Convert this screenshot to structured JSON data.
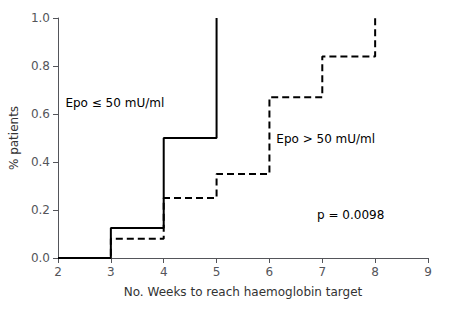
{
  "chart_data": {
    "type": "line",
    "xlabel": "No. Weeks to reach haemoglobin target",
    "ylabel": "% patients",
    "series": [
      {
        "color": "#000000",
        "line_style": "solid",
        "x": [
          2,
          3,
          3,
          4,
          4,
          5,
          5
        ],
        "values": [
          0.0,
          0.0,
          0.125,
          0.125,
          0.5,
          0.5,
          1.0
        ]
      },
      {
        "color": "#000000",
        "line_style": "dashed",
        "x": [
          2,
          3,
          3,
          4,
          4,
          5,
          5,
          6,
          6,
          7,
          7,
          8,
          8
        ],
        "values": [
          0.0,
          0.0,
          0.08,
          0.08,
          0.25,
          0.25,
          0.35,
          0.35,
          0.67,
          0.67,
          0.84,
          0.84,
          1.0
        ]
      }
    ],
    "annotations": [
      "Epo ≤ 50 mU/ml",
      "Epo > 50 mU/ml",
      "p = 0.0098"
    ],
    "xlim": [
      2,
      9
    ],
    "ylim": [
      0.0,
      1.0
    ],
    "xticks": [
      2,
      3,
      4,
      5,
      6,
      7,
      8,
      9
    ],
    "yticks": [
      {
        "value": 0.0,
        "label": "0.0"
      },
      0.2,
      0.4,
      0.6,
      0.8,
      {
        "value": 1.0,
        "label": "1.0"
      }
    ],
    "grid": false
  }
}
